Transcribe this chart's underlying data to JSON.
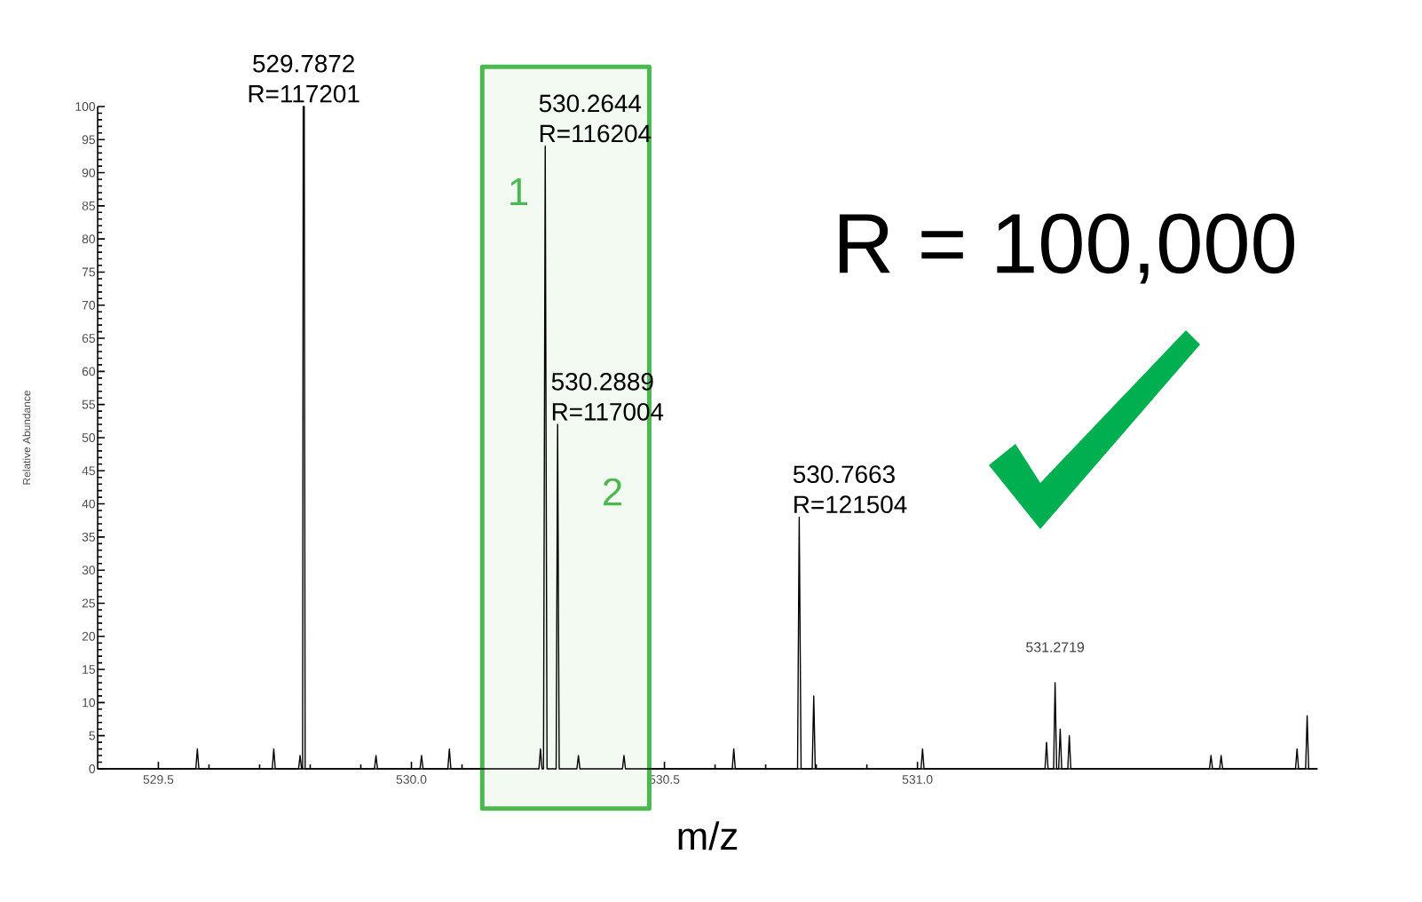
{
  "chart_data": {
    "type": "line",
    "xlabel": "m/z",
    "ylabel": "Relative Abundance",
    "xlim": [
      529.38,
      531.79
    ],
    "ylim": [
      0,
      100
    ],
    "xticks": [
      {
        "value": 529.5,
        "label": "529.5"
      },
      {
        "value": 530,
        "label": "530.0"
      },
      {
        "value": 530.5,
        "label": "530.5"
      },
      {
        "value": 531,
        "label": "531.0"
      }
    ],
    "yticks": [
      0,
      5,
      10,
      15,
      20,
      25,
      30,
      35,
      40,
      45,
      50,
      55,
      60,
      65,
      70,
      75,
      80,
      85,
      90,
      95,
      100
    ],
    "grid": false,
    "bands": [
      {
        "axis": "x",
        "from": 530.14,
        "to": 530.47,
        "color": "#4cb850"
      }
    ],
    "series": [
      {
        "color": "#000000",
        "x": [
          529.38,
          529.574,
          529.577,
          529.58,
          529.725,
          529.728,
          529.731,
          529.777,
          529.78,
          529.783,
          529.785,
          529.7862,
          529.7872,
          529.7882,
          529.79,
          529.927,
          529.93,
          529.933,
          530.017,
          530.02,
          530.023,
          530.072,
          530.075,
          530.078,
          530.252,
          530.255,
          530.258,
          530.261,
          530.2644,
          530.268,
          530.286,
          530.2889,
          530.292,
          530.327,
          530.33,
          530.333,
          530.417,
          530.42,
          530.423,
          530.634,
          530.637,
          530.64,
          530.763,
          530.7663,
          530.77,
          530.792,
          530.795,
          530.798,
          531.007,
          531.01,
          531.013,
          531.252,
          531.255,
          531.258,
          531.269,
          531.2719,
          531.275,
          531.279,
          531.282,
          531.285,
          531.297,
          531.3,
          531.303,
          531.577,
          531.58,
          531.583,
          531.597,
          531.6,
          531.603,
          531.747,
          531.75,
          531.753,
          531.767,
          531.77,
          531.773,
          531.79
        ],
        "values": [
          0,
          0,
          3,
          0,
          0,
          3,
          0,
          0,
          2,
          0,
          0,
          100,
          100,
          100,
          0,
          0,
          2,
          0,
          0,
          2,
          0,
          0,
          3,
          0,
          0,
          3,
          0,
          0,
          94,
          0,
          0,
          52,
          0,
          0,
          2,
          0,
          0,
          2,
          0,
          0,
          3,
          0,
          0,
          38,
          0,
          0,
          11,
          0,
          0,
          3,
          0,
          0,
          4,
          0,
          0,
          13,
          0,
          0,
          6,
          0,
          0,
          5,
          0,
          0,
          2,
          0,
          0,
          2,
          0,
          0,
          3,
          0,
          0,
          8,
          0,
          0
        ]
      }
    ],
    "annotations": [
      {
        "text": "529.7872",
        "x": 529.7872,
        "y": 100
      },
      {
        "text": "R=117201",
        "x": 529.7872,
        "y": 100
      },
      {
        "text": "530.2644",
        "x": 530.2644,
        "y": 94
      },
      {
        "text": "R=116204",
        "x": 530.2644,
        "y": 94
      },
      {
        "text": "530.2889",
        "x": 530.2889,
        "y": 52
      },
      {
        "text": "R=117004",
        "x": 530.2889,
        "y": 52
      },
      {
        "text": "530.7663",
        "x": 530.7663,
        "y": 38
      },
      {
        "text": "R=121504",
        "x": 530.7663,
        "y": 38
      },
      {
        "text": "531.2719",
        "x": 531.2719,
        "y": 13
      },
      "1",
      "2",
      "R = 100,000"
    ]
  }
}
